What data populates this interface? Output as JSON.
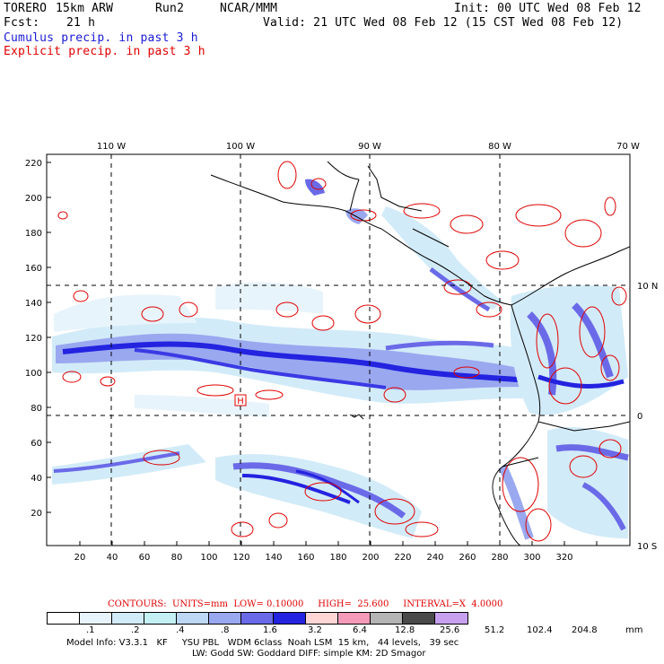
{
  "header": {
    "model": "TORERO",
    "resolution": "15km ARW",
    "run": "Run2",
    "institution": "NCAR/MMM",
    "init": "Init: 00 UTC Wed 08 Feb 12",
    "fcst_label": "Fcst:",
    "fcst_value": "21 h",
    "valid": "Valid: 21 UTC Wed 08 Feb 12 (15 CST Wed 08 Feb 12)",
    "field1": "Cumulus precip. in past 3 h",
    "field2": "Explicit precip. in past 3 h"
  },
  "map": {
    "top_lon_labels": [
      "110 W",
      "100 W",
      "90 W",
      "80 W",
      "70 W"
    ],
    "right_lat_labels": [
      "10 N",
      "0",
      "10 S"
    ],
    "y_ticks": [
      "220",
      "200",
      "180",
      "160",
      "140",
      "120",
      "100",
      "80",
      "60",
      "40",
      "20"
    ],
    "x_ticks": [
      "20",
      "40",
      "60",
      "80",
      "100",
      "120",
      "140",
      "160",
      "180",
      "200",
      "220",
      "240",
      "260",
      "280",
      "300",
      "320"
    ],
    "high_marker": "H"
  },
  "contours": {
    "text": "CONTOURS:  UNITS=mm  LOW= 0.10000     HIGH=  25.600     INTERVAL=X  4.0000"
  },
  "legend": {
    "units": "mm",
    "labels": [
      ".1",
      ".2",
      ".4",
      ".8",
      "1.6",
      "3.2",
      "6.4",
      "12.8",
      "25.6",
      "51.2",
      "102.4",
      "204.8"
    ],
    "colors": [
      "#ffffff",
      "#e8f4fb",
      "#d2ebf8",
      "#c4f0f4",
      "#bdd8f5",
      "#9aa8f0",
      "#6a6ae8",
      "#2323e0",
      "#ffd6d6",
      "#f59ab8",
      "#b4b4b4",
      "#4a4a4a",
      "#c8a0f0"
    ]
  },
  "model_info": {
    "line1": "Model Info: V3.3.1   KF     YSU PBL   WDM 6class  Noah LSM  15 km,   44 levels,   39 sec",
    "line2": "LW: Godd SW: Goddard DIFF: simple KM: 2D Smagor"
  }
}
